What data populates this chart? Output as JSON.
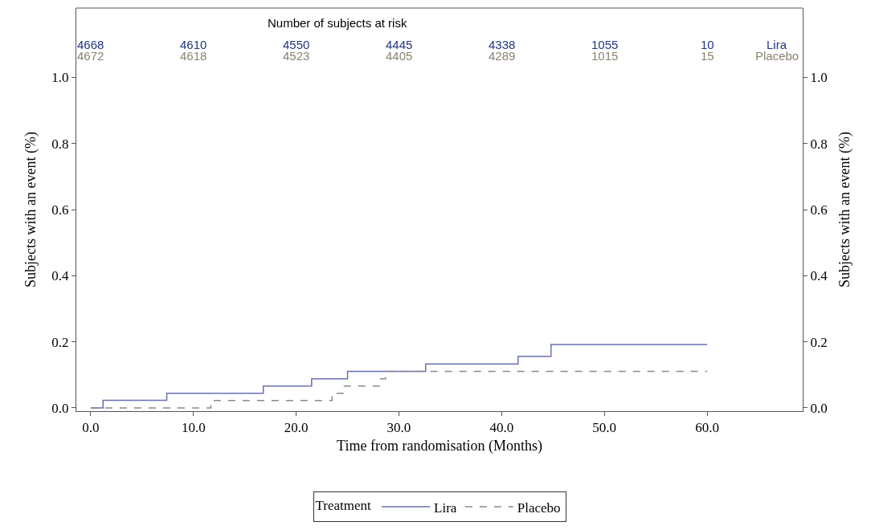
{
  "chart_data": {
    "type": "step",
    "xlabel": "Time from randomisation (Months)",
    "ylabel": "Subjects with an event (%)",
    "y2label": "Subjects with an event (%)",
    "legend_title": "Treatment",
    "legend": "bottom",
    "xlim": [
      -1.4,
      69.3
    ],
    "xticks": [
      {
        "value": 0,
        "label": "0.0"
      },
      {
        "value": 10,
        "label": "10.0"
      },
      {
        "value": 20,
        "label": "20.0"
      },
      {
        "value": 30,
        "label": "30.0"
      },
      {
        "value": 40,
        "label": "40.0"
      },
      {
        "value": 50,
        "label": "50.0"
      },
      {
        "value": 60,
        "label": "60.0"
      }
    ],
    "ylim": [
      -0.01,
      1.21
    ],
    "yticks": [
      {
        "value": 0,
        "label": "0.0"
      },
      {
        "value": 0.2,
        "label": "0.2"
      },
      {
        "value": 0.4,
        "label": "0.4"
      },
      {
        "value": 0.6,
        "label": "0.6"
      },
      {
        "value": 0.8,
        "label": "0.8"
      },
      {
        "value": 1.0,
        "label": "1.0"
      }
    ],
    "y2lim": [
      -0.01,
      1.21
    ],
    "y2ticks": [
      {
        "value": 0,
        "label": "0.0"
      },
      {
        "value": 0.2,
        "label": "0.2"
      },
      {
        "value": 0.4,
        "label": "0.4"
      },
      {
        "value": 0.6,
        "label": "0.6"
      },
      {
        "value": 0.8,
        "label": "0.8"
      },
      {
        "value": 1.0,
        "label": "1.0"
      }
    ],
    "series": [
      {
        "name": "Lira",
        "color": "#6a6fb5",
        "line_style": "solid",
        "x": [
          0,
          1.2,
          7.4,
          16.8,
          21.5,
          25.0,
          32.6,
          41.6,
          44.8,
          60
        ],
        "values": [
          0,
          0.023,
          0.044,
          0.066,
          0.088,
          0.11,
          0.133,
          0.156,
          0.192,
          0.192
        ]
      },
      {
        "name": "Placebo",
        "color": "#8a8a8a",
        "line_style": "dashed",
        "x": [
          0,
          11.7,
          23.5,
          24.6,
          28.1,
          28.7,
          60
        ],
        "values": [
          0,
          0.022,
          0.044,
          0.066,
          0.088,
          0.11,
          0.11
        ]
      }
    ],
    "annotations": [
      "Number of subjects at risk",
      "4668",
      "4610",
      "4550",
      "4445",
      "4338",
      "1055",
      "10",
      "Lira",
      "4672",
      "4618",
      "4523",
      "4405",
      "4289",
      "1015",
      "15",
      "Placebo"
    ]
  }
}
